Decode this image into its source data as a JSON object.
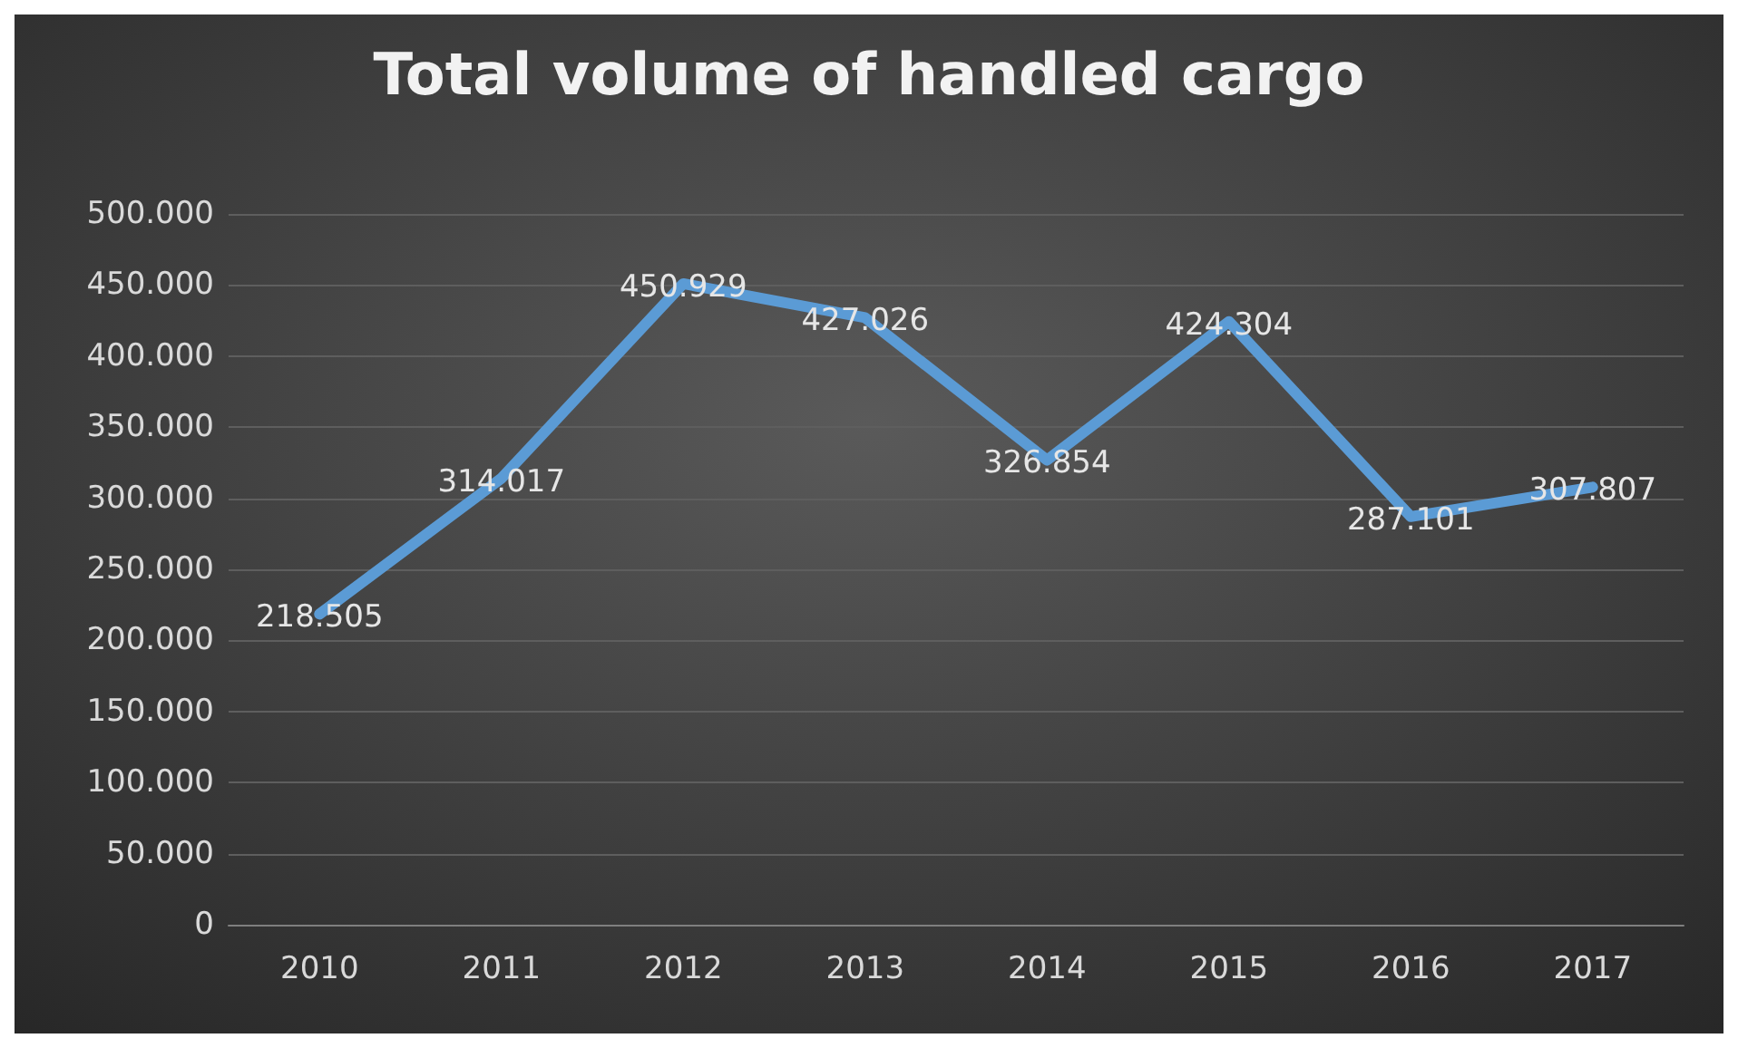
{
  "chart_data": {
    "type": "line",
    "title": "Total volume of handled cargo",
    "categories": [
      "2010",
      "2011",
      "2012",
      "2013",
      "2014",
      "2015",
      "2016",
      "2017"
    ],
    "series": [
      {
        "color": "#5b9bd5",
        "values": [
          218505,
          314017,
          450929,
          427026,
          326854,
          424304,
          287101,
          307807
        ],
        "value_labels": [
          "218.505",
          "314.017",
          "450.929",
          "427.026",
          "326.854",
          "424.304",
          "287.101",
          "307.807"
        ]
      }
    ],
    "ylim": [
      0,
      500000
    ],
    "yticks": [
      0,
      {
        "value": 50000,
        "label": "50.000"
      },
      {
        "value": 100000,
        "label": "100.000"
      },
      {
        "value": 150000,
        "label": "150.000"
      },
      {
        "value": 200000,
        "label": "200.000"
      },
      {
        "value": 250000,
        "label": "250.000"
      },
      {
        "value": 300000,
        "label": "300.000"
      },
      {
        "value": 350000,
        "label": "350.000"
      },
      {
        "value": 400000,
        "label": "400.000"
      },
      {
        "value": 450000,
        "label": "450.000"
      },
      {
        "value": 500000,
        "label": "500.000"
      }
    ],
    "grid": "y",
    "marker": "none",
    "line_style": "solid"
  }
}
